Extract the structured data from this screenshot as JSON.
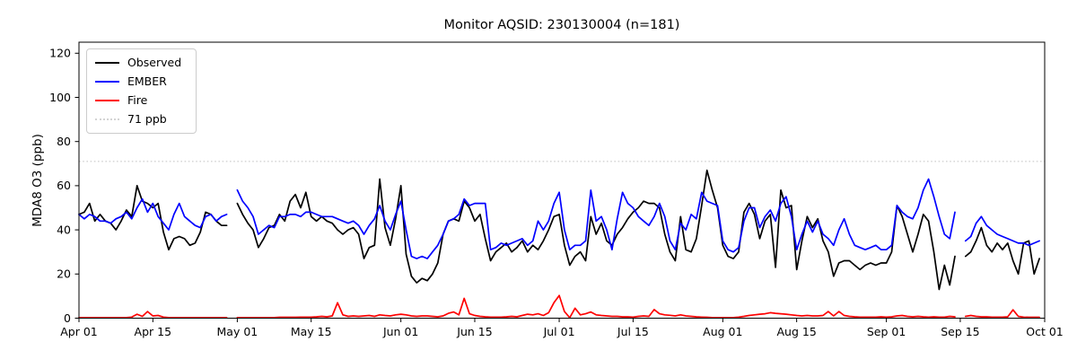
{
  "title": "Monitor AQSID: 230130004 (n=181)",
  "axes": {
    "ylabel": "MDA8 O3 (ppb)",
    "y_ticks": [
      0,
      20,
      40,
      60,
      80,
      100,
      120
    ],
    "ylim": [
      0,
      125
    ],
    "x_ticks": [
      {
        "label": "Apr 01",
        "day": 0
      },
      {
        "label": "Apr 15",
        "day": 14
      },
      {
        "label": "May 01",
        "day": 30
      },
      {
        "label": "May 15",
        "day": 44
      },
      {
        "label": "Jun 01",
        "day": 61
      },
      {
        "label": "Jun 15",
        "day": 75
      },
      {
        "label": "Jul 01",
        "day": 91
      },
      {
        "label": "Jul 15",
        "day": 105
      },
      {
        "label": "Aug 01",
        "day": 122
      },
      {
        "label": "Aug 15",
        "day": 136
      },
      {
        "label": "Sep 01",
        "day": 153
      },
      {
        "label": "Sep 15",
        "day": 167
      },
      {
        "label": "Oct 01",
        "day": 183
      }
    ],
    "x_span_days": 183,
    "x_unit": "days since Apr 01"
  },
  "legend": {
    "items": [
      {
        "label": "Observed",
        "color": "#000000",
        "style": "solid"
      },
      {
        "label": "EMBER",
        "color": "#0000ff",
        "style": "solid"
      },
      {
        "label": "Fire",
        "color": "#ff0000",
        "style": "solid"
      },
      {
        "label": "71 ppb",
        "color": "#d3d3d3",
        "style": "dotted"
      }
    ]
  },
  "chart_data": {
    "type": "line",
    "title": "Monitor AQSID: 230130004 (n=181)",
    "xlabel": "",
    "ylabel": "MDA8 O3 (ppb)",
    "x_start": "Apr 01",
    "x_end": "Oct 01",
    "grid": false,
    "legend_position": "upper left",
    "threshold": {
      "label": "71 ppb",
      "value": 71,
      "color": "#d3d3d3",
      "linestyle": "dotted"
    },
    "series": [
      {
        "name": "Observed",
        "color": "#000000",
        "values": [
          47,
          48,
          52,
          44,
          47,
          44,
          43,
          40,
          44,
          49,
          46,
          60,
          53,
          52,
          50,
          52,
          39,
          31,
          36,
          37,
          36,
          33,
          34,
          39,
          48,
          47,
          44,
          42,
          42,
          null,
          52,
          47,
          43,
          40,
          32,
          36,
          41,
          42,
          47,
          44,
          53,
          56,
          50,
          57,
          46,
          44,
          46,
          44,
          43,
          40,
          38,
          40,
          41,
          38,
          27,
          32,
          33,
          63,
          41,
          33,
          45,
          60,
          29,
          19,
          16,
          18,
          17,
          20,
          25,
          38,
          44,
          45,
          44,
          53,
          50,
          44,
          47,
          36,
          26,
          30,
          32,
          34,
          30,
          32,
          35,
          30,
          33,
          31,
          35,
          40,
          46,
          47,
          33,
          24,
          28,
          30,
          26,
          46,
          38,
          43,
          35,
          33,
          38,
          41,
          45,
          48,
          50,
          53,
          52,
          52,
          50,
          38,
          30,
          26,
          46,
          31,
          30,
          36,
          51,
          67,
          58,
          50,
          33,
          28,
          27,
          30,
          48,
          52,
          47,
          36,
          44,
          47,
          23,
          58,
          50,
          51,
          22,
          35,
          46,
          41,
          45,
          35,
          30,
          19,
          25,
          26,
          26,
          24,
          22,
          24,
          25,
          24,
          25,
          25,
          30,
          51,
          46,
          38,
          30,
          38,
          47,
          44,
          30,
          13,
          24,
          15,
          28,
          null,
          28,
          30,
          35,
          41,
          33,
          30,
          34,
          31,
          34,
          26,
          20,
          34,
          35,
          20,
          27
        ]
      },
      {
        "name": "EMBER",
        "color": "#0000ff",
        "values": [
          47,
          45,
          47,
          46,
          44,
          44,
          43,
          45,
          46,
          48,
          45,
          50,
          54,
          48,
          52,
          46,
          43,
          40,
          47,
          52,
          46,
          44,
          42,
          41,
          46,
          47,
          44,
          46,
          47,
          null,
          58,
          53,
          50,
          46,
          38,
          40,
          42,
          41,
          46,
          46,
          47,
          47,
          46,
          48,
          48,
          47,
          46,
          46,
          46,
          45,
          44,
          43,
          44,
          42,
          38,
          42,
          45,
          51,
          44,
          40,
          47,
          53,
          40,
          28,
          27,
          28,
          27,
          30,
          33,
          38,
          44,
          45,
          47,
          54,
          51,
          52,
          52,
          52,
          31,
          32,
          34,
          33,
          34,
          35,
          36,
          33,
          35,
          44,
          40,
          44,
          52,
          57,
          40,
          31,
          33,
          33,
          35,
          58,
          44,
          46,
          40,
          31,
          45,
          57,
          52,
          50,
          46,
          44,
          42,
          46,
          52,
          46,
          35,
          31,
          43,
          40,
          47,
          45,
          57,
          53,
          52,
          51,
          35,
          31,
          30,
          32,
          44,
          50,
          50,
          41,
          46,
          49,
          44,
          52,
          55,
          46,
          31,
          38,
          44,
          39,
          44,
          38,
          36,
          33,
          40,
          45,
          38,
          33,
          32,
          31,
          32,
          33,
          31,
          31,
          33,
          51,
          48,
          46,
          45,
          50,
          58,
          63,
          55,
          46,
          38,
          36,
          48,
          null,
          35,
          37,
          43,
          46,
          42,
          40,
          38,
          37,
          36,
          35,
          34,
          34,
          33,
          34,
          35
        ]
      },
      {
        "name": "Fire",
        "color": "#ff0000",
        "values": [
          0.3,
          0.3,
          0.3,
          0.3,
          0.3,
          0.3,
          0.3,
          0.3,
          0.3,
          0.3,
          0.5,
          1.8,
          0.8,
          3,
          1,
          1.2,
          0.5,
          0.3,
          0.3,
          0.3,
          0.3,
          0.3,
          0.3,
          0.3,
          0.3,
          0.3,
          0.3,
          0.3,
          0.3,
          null,
          0.3,
          0.3,
          0.3,
          0.3,
          0.3,
          0.3,
          0.3,
          0.3,
          0.4,
          0.4,
          0.4,
          0.4,
          0.5,
          0.5,
          0.5,
          0.6,
          0.8,
          0.6,
          1,
          7,
          1.5,
          0.8,
          1,
          0.8,
          1,
          1.2,
          0.8,
          1.5,
          1.2,
          1,
          1.5,
          1.8,
          1.5,
          1,
          0.8,
          1,
          1,
          0.8,
          0.6,
          1,
          2.2,
          2.8,
          1.5,
          9,
          2,
          1.2,
          0.8,
          0.6,
          0.5,
          0.5,
          0.5,
          0.6,
          0.8,
          0.6,
          1.2,
          1.8,
          1.5,
          2,
          1.2,
          2.5,
          7,
          10.3,
          3,
          0.2,
          4.5,
          1.5,
          2,
          2.8,
          1.5,
          1.2,
          1,
          0.8,
          0.8,
          0.6,
          0.6,
          0.5,
          0.8,
          1,
          0.8,
          3.9,
          2,
          1.5,
          1.3,
          1,
          1.5,
          1,
          0.8,
          0.6,
          0.5,
          0.4,
          0.3,
          0.3,
          0.3,
          0.3,
          0.3,
          0.5,
          0.8,
          1.2,
          1.5,
          1.8,
          2,
          2.5,
          2.2,
          2,
          1.8,
          1.5,
          1.2,
          1,
          1.2,
          1,
          1,
          1.2,
          3,
          1,
          3,
          1.2,
          0.8,
          0.6,
          0.5,
          0.5,
          0.5,
          0.5,
          0.6,
          0.5,
          0.6,
          1,
          1.2,
          0.8,
          0.6,
          0.8,
          0.6,
          0.5,
          0.6,
          0.5,
          0.5,
          0.8,
          0.6,
          null,
          0.8,
          1.2,
          0.8,
          0.6,
          0.6,
          0.5,
          0.5,
          0.5,
          0.6,
          3.8,
          0.8,
          0.5,
          0.4,
          0.4,
          0.4
        ]
      }
    ]
  }
}
